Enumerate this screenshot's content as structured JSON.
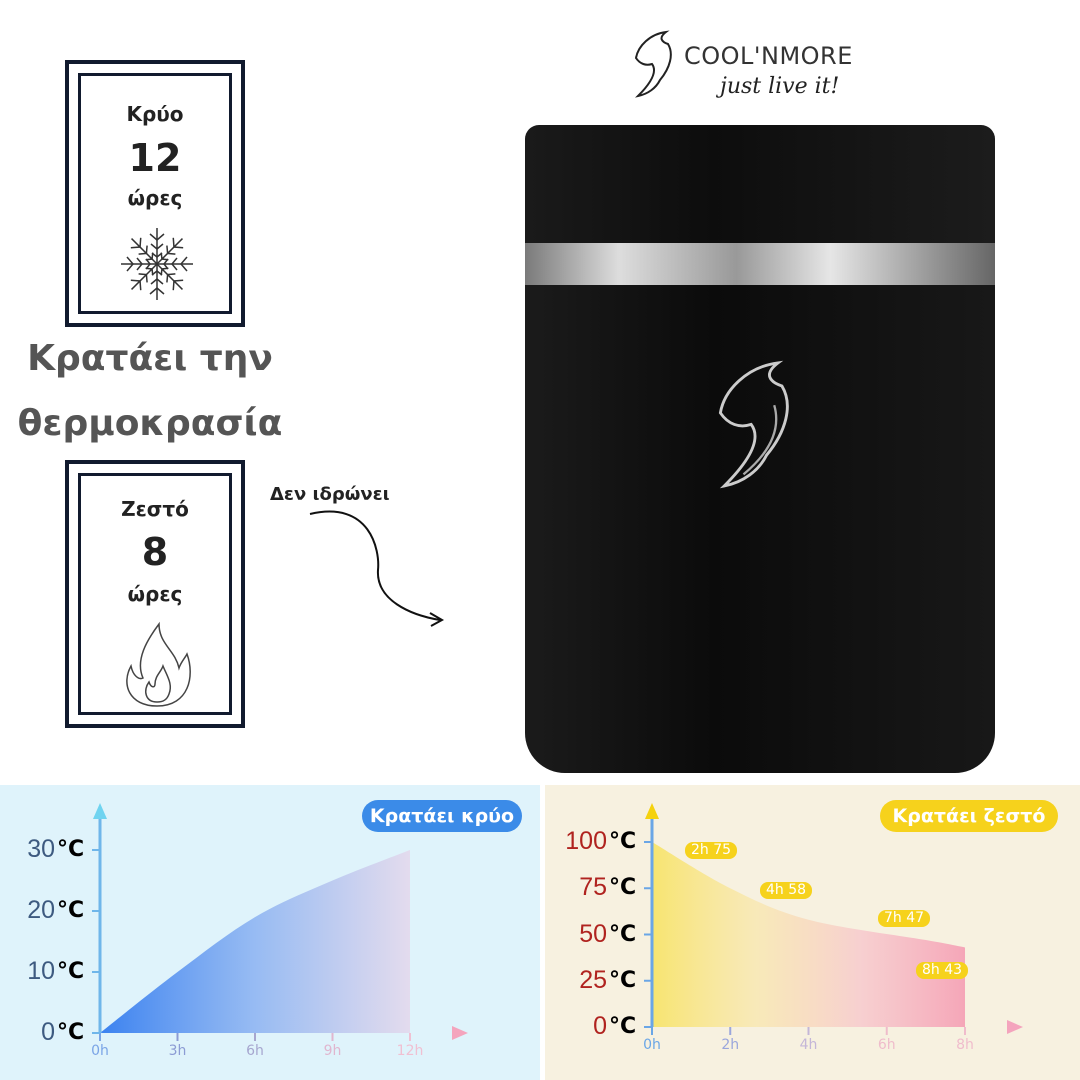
{
  "brand": {
    "name": "COOL'NMORE",
    "tagline": "just live it!"
  },
  "cold_box": {
    "label": "Κρύο",
    "hours": "12",
    "unit": "ώρες",
    "icon": "snowflake-icon"
  },
  "hot_box": {
    "label": "Ζεστό",
    "hours": "8",
    "unit": "ώρες",
    "icon": "flame-icon"
  },
  "headline": {
    "line1": "Κρατάει την",
    "line2": "θερμοκρασία"
  },
  "no_sweat": "Δεν ιδρώνει",
  "colors": {
    "cold_accent": "#3b8be8",
    "hot_accent": "#f6d21c",
    "cold_bg": "#dff3fb",
    "hot_bg": "#f7f1e0",
    "product": "#111111"
  },
  "chart_data": [
    {
      "type": "area",
      "title": "Κρατάει κρύο",
      "x": [
        0,
        3,
        6,
        9,
        12
      ],
      "y": [
        0,
        10,
        19,
        25,
        30
      ],
      "x_ticks": [
        "0h",
        "3h",
        "6h",
        "9h",
        "12h"
      ],
      "y_ticks": [
        "30",
        "20",
        "10",
        "0"
      ],
      "y_unit": "°C",
      "xlim": [
        0,
        12
      ],
      "ylim": [
        0,
        30
      ]
    },
    {
      "type": "area",
      "title": "Κρατάει ζεστό",
      "x": [
        0,
        2,
        4,
        7,
        8
      ],
      "y": [
        100,
        75,
        58,
        47,
        43
      ],
      "x_ticks": [
        "0h",
        "2h",
        "4h",
        "6h",
        "8h"
      ],
      "y_ticks": [
        "100",
        "75",
        "50",
        "25",
        "0"
      ],
      "y_unit": "°C",
      "xlim": [
        0,
        8
      ],
      "ylim": [
        0,
        100
      ],
      "annotations": [
        "2h 75",
        "4h 58",
        "7h 47",
        "8h 43"
      ]
    }
  ]
}
